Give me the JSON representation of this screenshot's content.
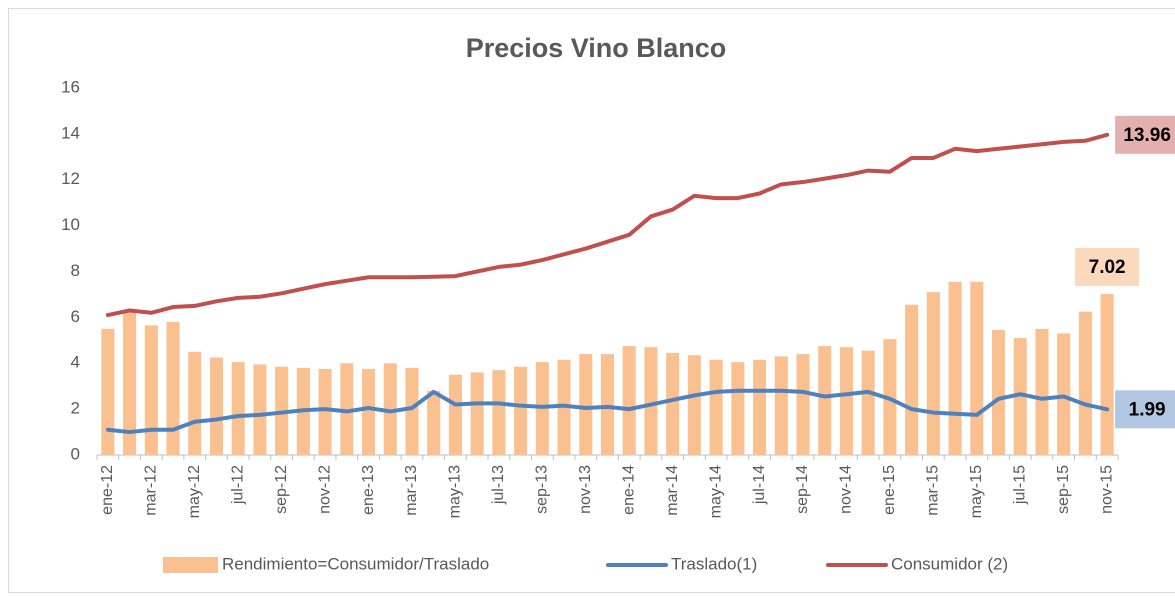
{
  "chart_data": {
    "type": "bar_line",
    "title": "Precios Vino Blanco",
    "categories": [
      "ene-12",
      null,
      "mar-12",
      null,
      "may-12",
      null,
      "jul-12",
      null,
      "sep-12",
      null,
      "nov-12",
      null,
      "ene-13",
      null,
      "mar-13",
      null,
      "may-13",
      null,
      "jul-13",
      null,
      "sep-13",
      null,
      "nov-13",
      null,
      "ene-14",
      null,
      "mar-14",
      null,
      "may-14",
      null,
      "jul-14",
      null,
      "sep-14",
      null,
      "nov-14",
      null,
      "ene-15",
      null,
      "mar-15",
      null,
      "may-15",
      null,
      "jul-15",
      null,
      "sep-15",
      null,
      "nov-15"
    ],
    "series": [
      {
        "name": "Rendimiento=Consumidor/Traslado",
        "type": "bar",
        "color": "#fac090",
        "values": [
          5.5,
          6.2,
          5.65,
          5.8,
          4.5,
          4.25,
          4.05,
          3.95,
          3.85,
          3.8,
          3.75,
          4.0,
          3.75,
          4.0,
          3.8,
          2.8,
          3.5,
          3.6,
          3.7,
          3.85,
          4.05,
          4.15,
          4.4,
          4.4,
          4.75,
          4.7,
          4.45,
          4.35,
          4.15,
          4.05,
          4.15,
          4.3,
          4.4,
          4.75,
          4.7,
          4.55,
          5.05,
          6.55,
          7.1,
          7.55,
          7.55,
          5.45,
          5.1,
          5.5,
          5.3,
          6.25,
          7.02
        ]
      },
      {
        "name": "Traslado(1)",
        "type": "line",
        "color": "#4f81bd",
        "values": [
          1.1,
          1.0,
          1.1,
          1.1,
          1.45,
          1.55,
          1.7,
          1.75,
          1.85,
          1.95,
          2.0,
          1.9,
          2.05,
          1.9,
          2.05,
          2.75,
          2.2,
          2.25,
          2.25,
          2.15,
          2.1,
          2.15,
          2.05,
          2.1,
          2.0,
          2.2,
          2.4,
          2.6,
          2.75,
          2.8,
          2.8,
          2.8,
          2.75,
          2.55,
          2.65,
          2.75,
          2.45,
          2.0,
          1.85,
          1.8,
          1.75,
          2.45,
          2.65,
          2.45,
          2.55,
          2.2,
          1.99
        ]
      },
      {
        "name": "Consumidor (2)",
        "type": "line",
        "color": "#c0504d",
        "values": [
          6.1,
          6.3,
          6.2,
          6.45,
          6.5,
          6.7,
          6.85,
          6.9,
          7.05,
          7.25,
          7.45,
          7.6,
          7.75,
          7.75,
          7.75,
          7.77,
          7.8,
          8.0,
          8.2,
          8.3,
          8.5,
          8.75,
          9.0,
          9.3,
          9.6,
          10.4,
          10.7,
          11.3,
          11.2,
          11.2,
          11.4,
          11.8,
          11.9,
          12.05,
          12.2,
          12.4,
          12.35,
          12.95,
          12.95,
          13.35,
          13.25,
          13.35,
          13.45,
          13.55,
          13.65,
          13.7,
          13.96
        ]
      }
    ],
    "data_labels": "last",
    "ylim": [
      0,
      16
    ],
    "yticks": [
      0,
      2,
      4,
      6,
      8,
      10,
      12,
      14,
      16
    ],
    "grid": false,
    "legend": "bottom"
  }
}
